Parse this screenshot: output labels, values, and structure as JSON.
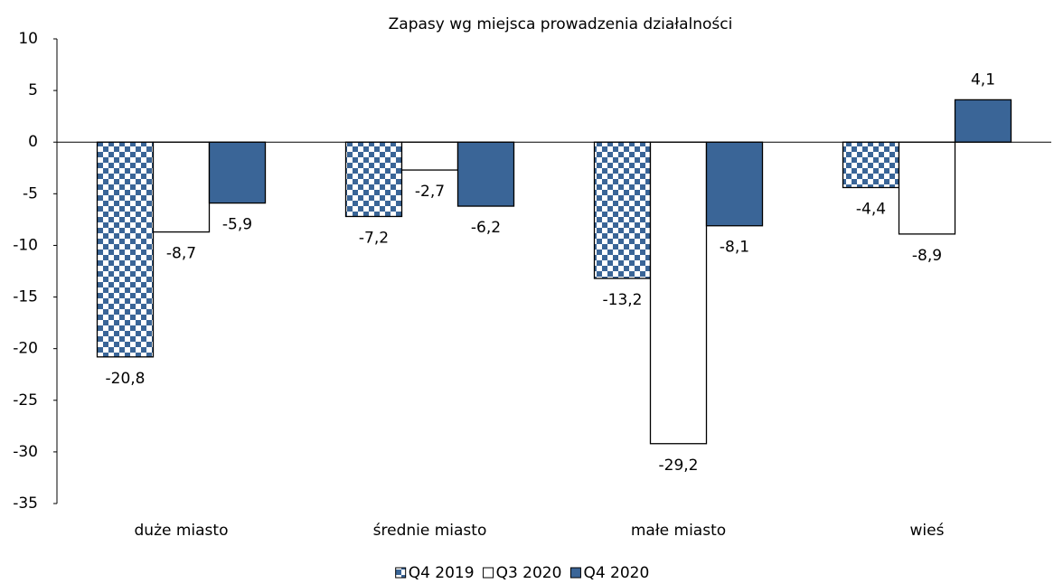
{
  "chart_data": {
    "type": "bar",
    "title": "Zapasy wg miejsca prowadzenia działalności",
    "categories": [
      "duże miasto",
      "średnie miasto",
      "małe miasto",
      "wieś"
    ],
    "series": [
      {
        "name": "Q4 2019",
        "color": "#3A6597",
        "pattern": "checkerboard",
        "values": [
          -20.8,
          -7.2,
          -13.2,
          -4.4
        ],
        "value_labels": [
          "-20,8",
          "-7,2",
          "-13,2",
          "-4,4"
        ]
      },
      {
        "name": "Q3 2020",
        "color": "#FFFFFF",
        "values": [
          -8.7,
          -2.7,
          -29.2,
          -8.9
        ],
        "value_labels": [
          "-8,7",
          "-2,7",
          "-29,2",
          "-8,9"
        ]
      },
      {
        "name": "Q4 2020",
        "color": "#3A6597",
        "values": [
          -5.9,
          -6.2,
          -8.1,
          4.1
        ],
        "value_labels": [
          "-5,9",
          "-6,2",
          "-8,1",
          "4,1"
        ]
      }
    ],
    "ylim": [
      -35,
      10
    ],
    "yticks": [
      -35,
      -30,
      -25,
      -20,
      -15,
      -10,
      -5,
      0,
      5,
      10
    ],
    "grid": false,
    "legend": "bottom"
  }
}
